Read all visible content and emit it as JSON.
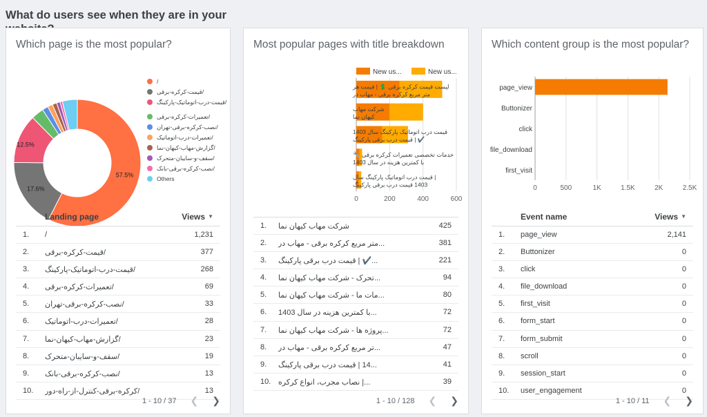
{
  "section_title": "What do users see when they are in your website?",
  "panels": [
    {
      "title": "Which page is the most popular?",
      "chart_data": {
        "type": "pie",
        "title": "Which page is the most popular?",
        "slices": [
          {
            "label": "/",
            "value": 57.5,
            "color": "#ff7043"
          },
          {
            "label": "قیمت-کرکره-برقی/",
            "value": 17.6,
            "color": "#757575"
          },
          {
            "label": "قیمت-درب-اتوماتیک-پارکینگ/",
            "value": 12.5,
            "color": "#ef5675"
          },
          {
            "label": "تعمیرات-کرکره-برقی/",
            "value": 3.2,
            "color": "#66bb6a"
          },
          {
            "label": "نصب-کرکره-برقی-تهران/",
            "value": 1.5,
            "color": "#5c8ee6"
          },
          {
            "label": "تعمیرات-درب-اتوماتیک/",
            "value": 1.3,
            "color": "#ffa05c"
          },
          {
            "label": "گزارش-مهاب-کیهان-نما/",
            "value": 1.1,
            "color": "#a8624e"
          },
          {
            "label": "سقف-و-سایبان-متحرک/",
            "value": 0.9,
            "color": "#a05ab8"
          },
          {
            "label": "نصب-کرکره-برقی-بانک/",
            "value": 0.6,
            "color": "#f06eb0"
          },
          {
            "label": "Others",
            "value": 3.8,
            "color": "#6dcdf2"
          }
        ],
        "data_labels": [
          "57.5%",
          "17.6%",
          "12.5%"
        ],
        "legend_position": "right"
      },
      "table": {
        "col_name": "Landing page",
        "col_views": "Views",
        "rows": [
          {
            "idx": "1.",
            "name": "/",
            "views": "1,231"
          },
          {
            "idx": "2.",
            "name": "قیمت-کرکره-برقی/",
            "views": "377"
          },
          {
            "idx": "3.",
            "name": "قیمت-درب-اتوماتیک-پارکینگ/",
            "views": "268"
          },
          {
            "idx": "4.",
            "name": "تعمیرات-کرکره-برقی/",
            "views": "69"
          },
          {
            "idx": "5.",
            "name": "نصب-کرکره-برقی-تهران/",
            "views": "33"
          },
          {
            "idx": "6.",
            "name": "تعمیرات-درب-اتوماتیک/",
            "views": "28"
          },
          {
            "idx": "7.",
            "name": "گزارش-مهاب-کیهان-نما/",
            "views": "23"
          },
          {
            "idx": "8.",
            "name": "سقف-و-سایبان-متحرک/",
            "views": "19"
          },
          {
            "idx": "9.",
            "name": "نصب-کرکره-برقی-بانک/",
            "views": "13"
          },
          {
            "idx": "10.",
            "name": "کرکره-برقی-کنترل-از-راه-دور/",
            "views": "13"
          }
        ],
        "pager": "1 - 10 / 37"
      }
    },
    {
      "title": "Most popular pages with title breakdown",
      "chart_data": {
        "type": "bar",
        "orientation": "horizontal",
        "stacked": true,
        "title": "Most popular pages with title breakdown",
        "categories": [
          "لیست قیمت کرکره برقی 💲 | قیمت هر متر مربع کرکره برقی - مهاب در",
          "شرکت مهاب کیهان نما",
          "قیمت درب اتوماتیک پارکینگ سال 1403 ✔️ | قیمت درب برقی پارکینگ",
          "خدمات تخصصی تعمیرات کرکره برقی 🔧 با کمترین هزینه در سال 1403",
          "| قیمت درب اتوماتیک پارکینگ سال 1403 قیمت درب برقی پارکینگ"
        ],
        "series": [
          {
            "name": "New us...",
            "color": "#f57c00",
            "values": [
              260,
              200,
              155,
              20,
              15
            ]
          },
          {
            "name": "New us...",
            "color": "#ffab00",
            "values": [
              255,
              200,
              155,
              15,
              15
            ]
          }
        ],
        "xlim": [
          0,
          600
        ],
        "xticks": [
          "0",
          "200",
          "400",
          "600"
        ],
        "legend_position": "top"
      },
      "table": {
        "col_name": "",
        "col_views": "",
        "rows": [
          {
            "idx": "1.",
            "name": "شرکت مهاب کیهان نما",
            "views": "425"
          },
          {
            "idx": "2.",
            "name": "...متر مربع کرکره برقی - مهاب در",
            "views": "381"
          },
          {
            "idx": "3.",
            "name": "...✔️ | قیمت درب برقی پارکینگ",
            "views": "221"
          },
          {
            "idx": "4.",
            "name": "...تحرک - شرکت مهاب کیهان نما",
            "views": "94"
          },
          {
            "idx": "5.",
            "name": "...مات ما - شرکت مهاب کیهان نما",
            "views": "80"
          },
          {
            "idx": "6.",
            "name": "...با کمترین هزینه در سال 1403",
            "views": "72"
          },
          {
            "idx": "7.",
            "name": "...پروژه ها - شرکت مهاب کیهان نما",
            "views": "72"
          },
          {
            "idx": "8.",
            "name": "...تر مربع کرکره برقی - مهاب در",
            "views": "47"
          },
          {
            "idx": "9.",
            "name": "...14 | قیمت درب برقی پارکینگ",
            "views": "41"
          },
          {
            "idx": "10.",
            "name": "...| نصاب مجرب، انواع کرکره",
            "views": "39"
          }
        ],
        "pager": "1 - 10 / 128"
      }
    },
    {
      "title": "Which content group is the most popular?",
      "chart_data": {
        "type": "bar",
        "orientation": "horizontal",
        "title": "Which content group is the most popular?",
        "categories": [
          "page_view",
          "Buttonizer",
          "click",
          "file_download",
          "first_visit"
        ],
        "values": [
          2141,
          0,
          0,
          0,
          0
        ],
        "color": "#f57c00",
        "xlim": [
          0,
          2500
        ],
        "xticks": [
          "0",
          "500",
          "1K",
          "1.5K",
          "2K",
          "2.5K"
        ],
        "grid": true
      },
      "table": {
        "col_name": "Event name",
        "col_views": "Views",
        "rows": [
          {
            "idx": "1.",
            "name": "page_view",
            "views": "2,141"
          },
          {
            "idx": "2.",
            "name": "Buttonizer",
            "views": "0"
          },
          {
            "idx": "3.",
            "name": "click",
            "views": "0"
          },
          {
            "idx": "4.",
            "name": "file_download",
            "views": "0"
          },
          {
            "idx": "5.",
            "name": "first_visit",
            "views": "0"
          },
          {
            "idx": "6.",
            "name": "form_start",
            "views": "0"
          },
          {
            "idx": "7.",
            "name": "form_submit",
            "views": "0"
          },
          {
            "idx": "8.",
            "name": "scroll",
            "views": "0"
          },
          {
            "idx": "9.",
            "name": "session_start",
            "views": "0"
          },
          {
            "idx": "10.",
            "name": "user_engagement",
            "views": "0"
          }
        ],
        "pager": "1 - 10 / 11"
      }
    }
  ],
  "icons": {
    "sort": "sort-desc-icon",
    "prev": "chevron-left-icon",
    "next": "chevron-right-icon"
  }
}
